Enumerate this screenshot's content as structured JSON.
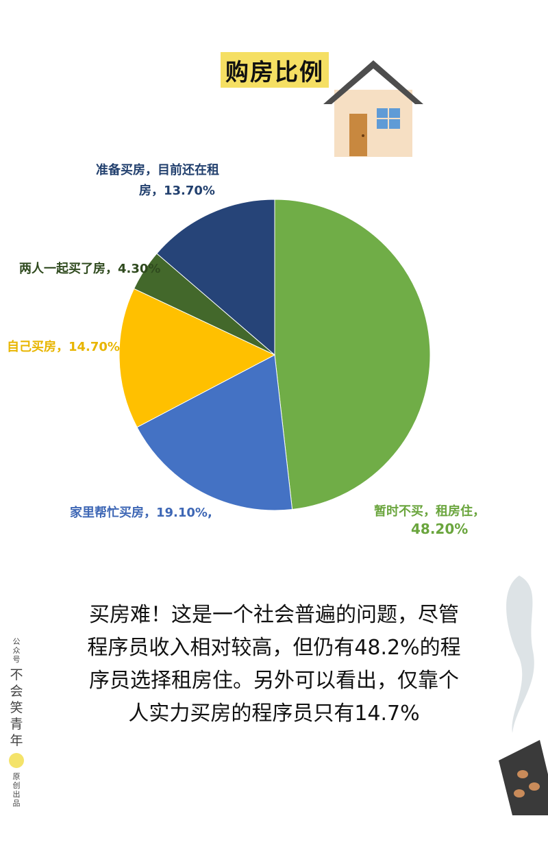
{
  "header": {
    "title": "购房比例"
  },
  "chart_data": {
    "type": "pie",
    "title": "购房比例",
    "slices": [
      {
        "label": "暂时不买，租房住",
        "value": 48.2,
        "label_text": "暂时不买，租房住，",
        "value_text": "48.20%",
        "color": "#70ad47"
      },
      {
        "label": "家里帮忙买房",
        "value": 19.1,
        "label_text": "家里帮忙买房，",
        "value_text": "19.10%,",
        "color": "#4472c4"
      },
      {
        "label": "自己买房",
        "value": 14.7,
        "label_text": "自己买房，",
        "value_text": "14.70%",
        "color": "#ffc000"
      },
      {
        "label": "两人一起买了房",
        "value": 4.3,
        "label_text": "两人一起买了房，",
        "value_text": "4.30%",
        "color": "#43682b"
      },
      {
        "label": "准备买房，目前还在租房",
        "value": 13.7,
        "label_text": "准备买房，目前还在租",
        "label_text2": "房，",
        "value_text": "13.70%",
        "color": "#264478"
      }
    ],
    "start_angle_deg": 0,
    "direction": "clockwise"
  },
  "caption": {
    "lines": [
      "买房难！这是一个社会普遍的问题，尽管",
      "程序员收入相对较高，但仍有48.2%的程",
      "序员选择租房住。另外可以看出，仅靠个",
      "人实力买房的程序员只有14.7%"
    ]
  },
  "watermark": {
    "top": "公众号",
    "name": "不会笑青年",
    "bottom": "原创出品"
  }
}
